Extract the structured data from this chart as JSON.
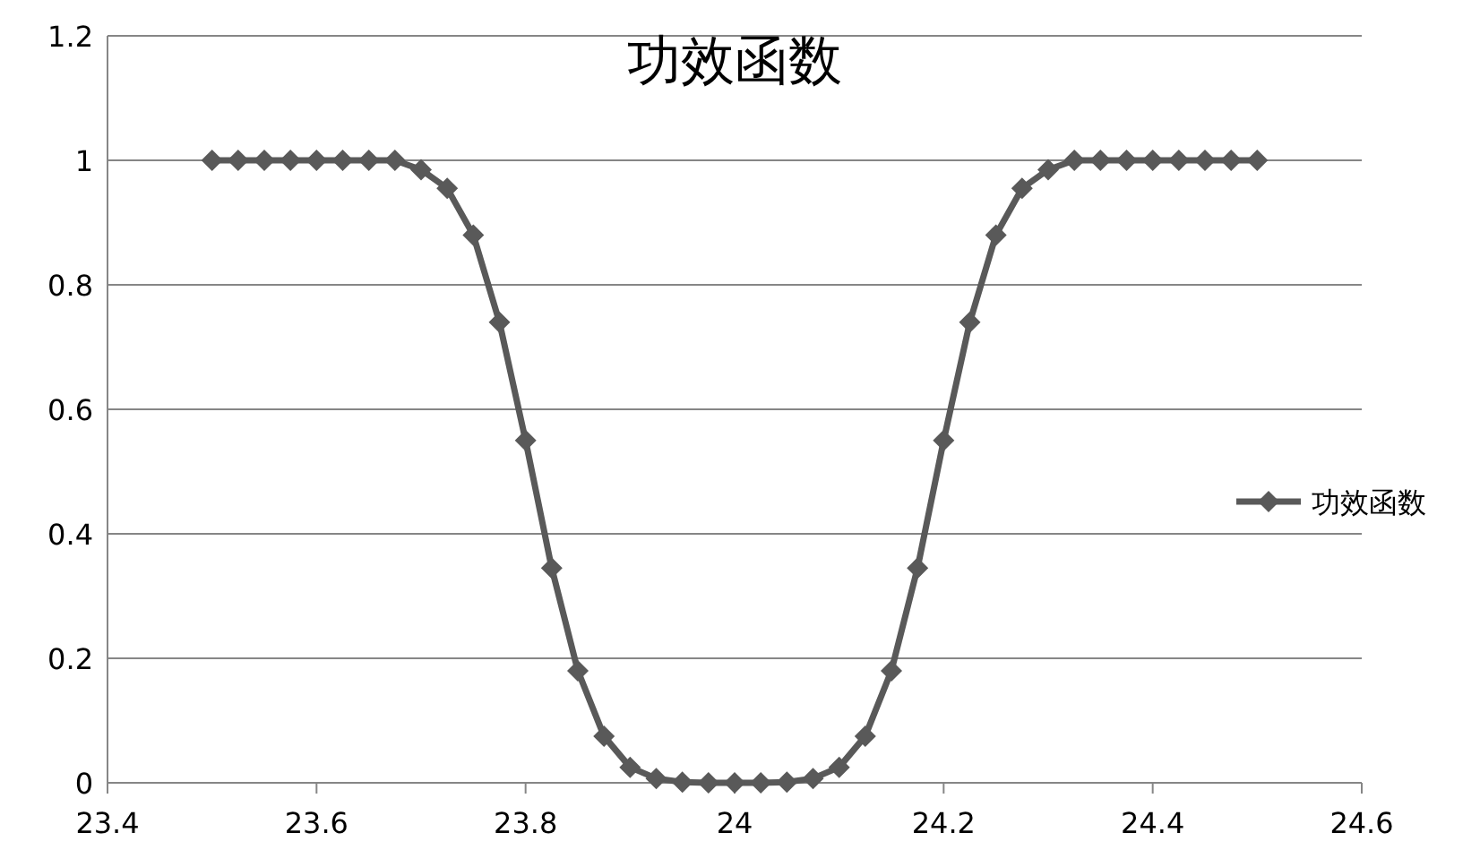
{
  "chart_data": {
    "type": "line",
    "title": "功效函数",
    "x": [
      23.5,
      23.525,
      23.55,
      23.575,
      23.6,
      23.625,
      23.65,
      23.675,
      23.7,
      23.725,
      23.75,
      23.775,
      23.8,
      23.825,
      23.85,
      23.875,
      23.9,
      23.925,
      23.95,
      23.975,
      24,
      24.025,
      24.05,
      24.075,
      24.1,
      24.125,
      24.15,
      24.175,
      24.2,
      24.225,
      24.25,
      24.275,
      24.3,
      24.325,
      24.35,
      24.375,
      24.4,
      24.425,
      24.45,
      24.475,
      24.5
    ],
    "series": [
      {
        "name": "功效函数",
        "color": "#595959",
        "values": [
          1,
          1,
          1,
          1,
          1,
          1,
          1,
          1,
          0.985,
          0.955,
          0.88,
          0.74,
          0.55,
          0.345,
          0.18,
          0.075,
          0.025,
          0.007,
          0.001,
          0,
          0,
          0,
          0.001,
          0.007,
          0.025,
          0.075,
          0.18,
          0.345,
          0.55,
          0.74,
          0.88,
          0.955,
          0.985,
          1,
          1,
          1,
          1,
          1,
          1,
          1,
          1
        ]
      }
    ],
    "xlim": [
      23.4,
      24.6
    ],
    "ylim": [
      0,
      1.2
    ],
    "xticks": [
      23.4,
      23.6,
      23.8,
      24,
      24.2,
      24.4,
      24.6
    ],
    "yticks": [
      0,
      0.2,
      0.4,
      0.6,
      0.8,
      1,
      1.2
    ],
    "grid": "y",
    "legend": "right",
    "marker": "diamond",
    "line_style": "solid"
  }
}
